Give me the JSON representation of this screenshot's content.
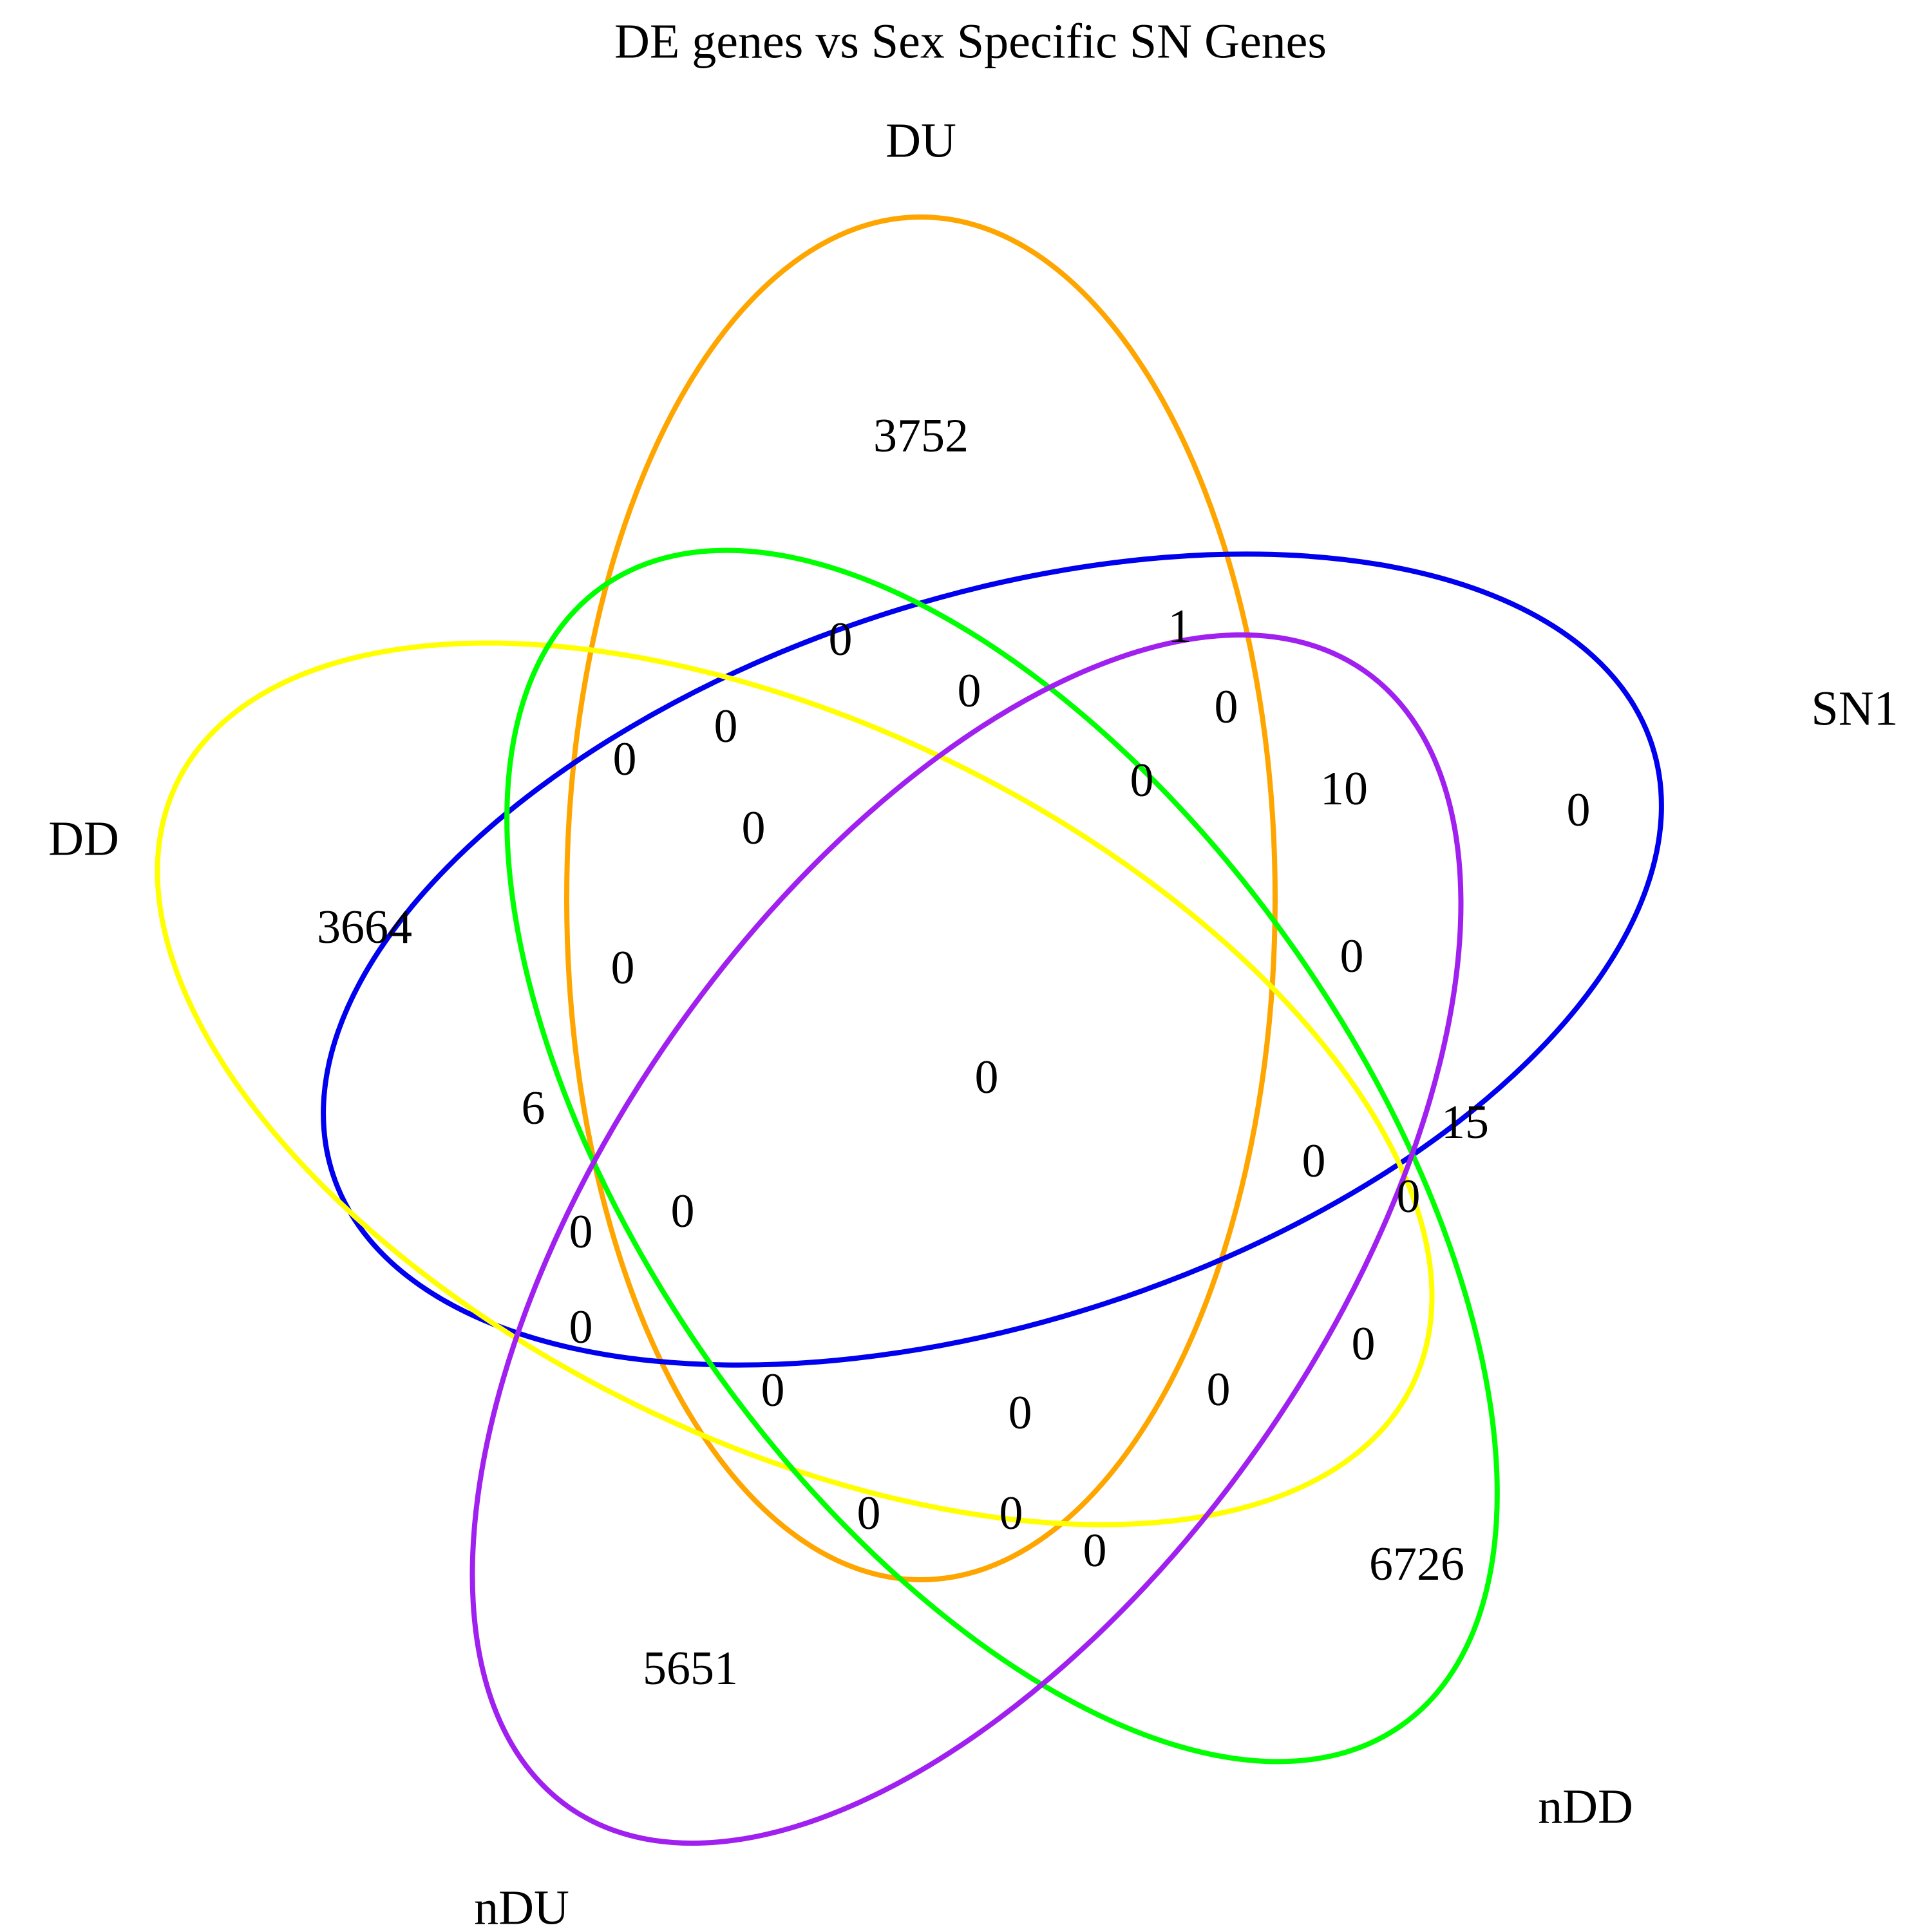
{
  "title": "DE genes vs Sex Specific SN Genes",
  "sets": [
    {
      "name": "DU",
      "color": "#FFA500"
    },
    {
      "name": "SN1",
      "color": "#0000EE"
    },
    {
      "name": "DD",
      "color": "#FFFF00"
    },
    {
      "name": "nDD",
      "color": "#00FF00"
    },
    {
      "name": "nDU",
      "color": "#A020F0"
    }
  ],
  "regions": {
    "du_only": "3752",
    "dd_only": "3664",
    "sn1_only": "0",
    "ndd_only": "6726",
    "ndu_only": "5651",
    "center": "0",
    "r01": "0",
    "r02": "1",
    "r03": "0",
    "r04": "0",
    "r05": "0",
    "r06": "0",
    "r07": "0",
    "r08": "10",
    "r09": "0",
    "r10": "0",
    "r11": "0",
    "r12": "15",
    "r13": "0",
    "r14": "6",
    "r15": "0",
    "r16": "0",
    "r17": "0",
    "r18": "0",
    "r19": "0",
    "r20": "0",
    "r21": "0",
    "r22": "0",
    "r23": "0",
    "r24": "0",
    "r25": "0",
    "r26": "0"
  }
}
